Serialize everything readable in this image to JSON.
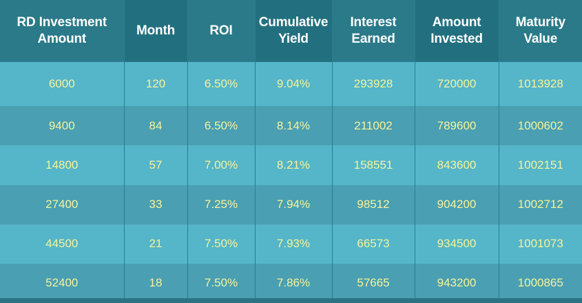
{
  "chart_data": {
    "type": "table",
    "columns": [
      "RD Investment\nAmount",
      "Month",
      "ROI",
      "Cumulative\nYield",
      "Interest\nEarned",
      "Amount\nInvested",
      "Maturity\nValue"
    ],
    "rows": [
      [
        "6000",
        "120",
        "6.50%",
        "9.04%",
        "293928",
        "720000",
        "1013928"
      ],
      [
        "9400",
        "84",
        "6.50%",
        "8.14%",
        "211002",
        "789600",
        "1000602"
      ],
      [
        "14800",
        "57",
        "7.00%",
        "8.21%",
        "158551",
        "843600",
        "1002151"
      ],
      [
        "27400",
        "33",
        "7.25%",
        "7.94%",
        "98512",
        "904200",
        "1002712"
      ],
      [
        "44500",
        "21",
        "7.50%",
        "7.93%",
        "66573",
        "934500",
        "1001073"
      ],
      [
        "52400",
        "18",
        "7.50%",
        "7.86%",
        "57665",
        "943200",
        "1000865"
      ]
    ]
  },
  "colors": {
    "header_dark": "#22707f",
    "header_light": "#2a7a89",
    "row_light": "#55b5c9",
    "row_dark": "#4a9fb2",
    "header_text": "#ffffff",
    "cell_text": "#f6f39a"
  }
}
